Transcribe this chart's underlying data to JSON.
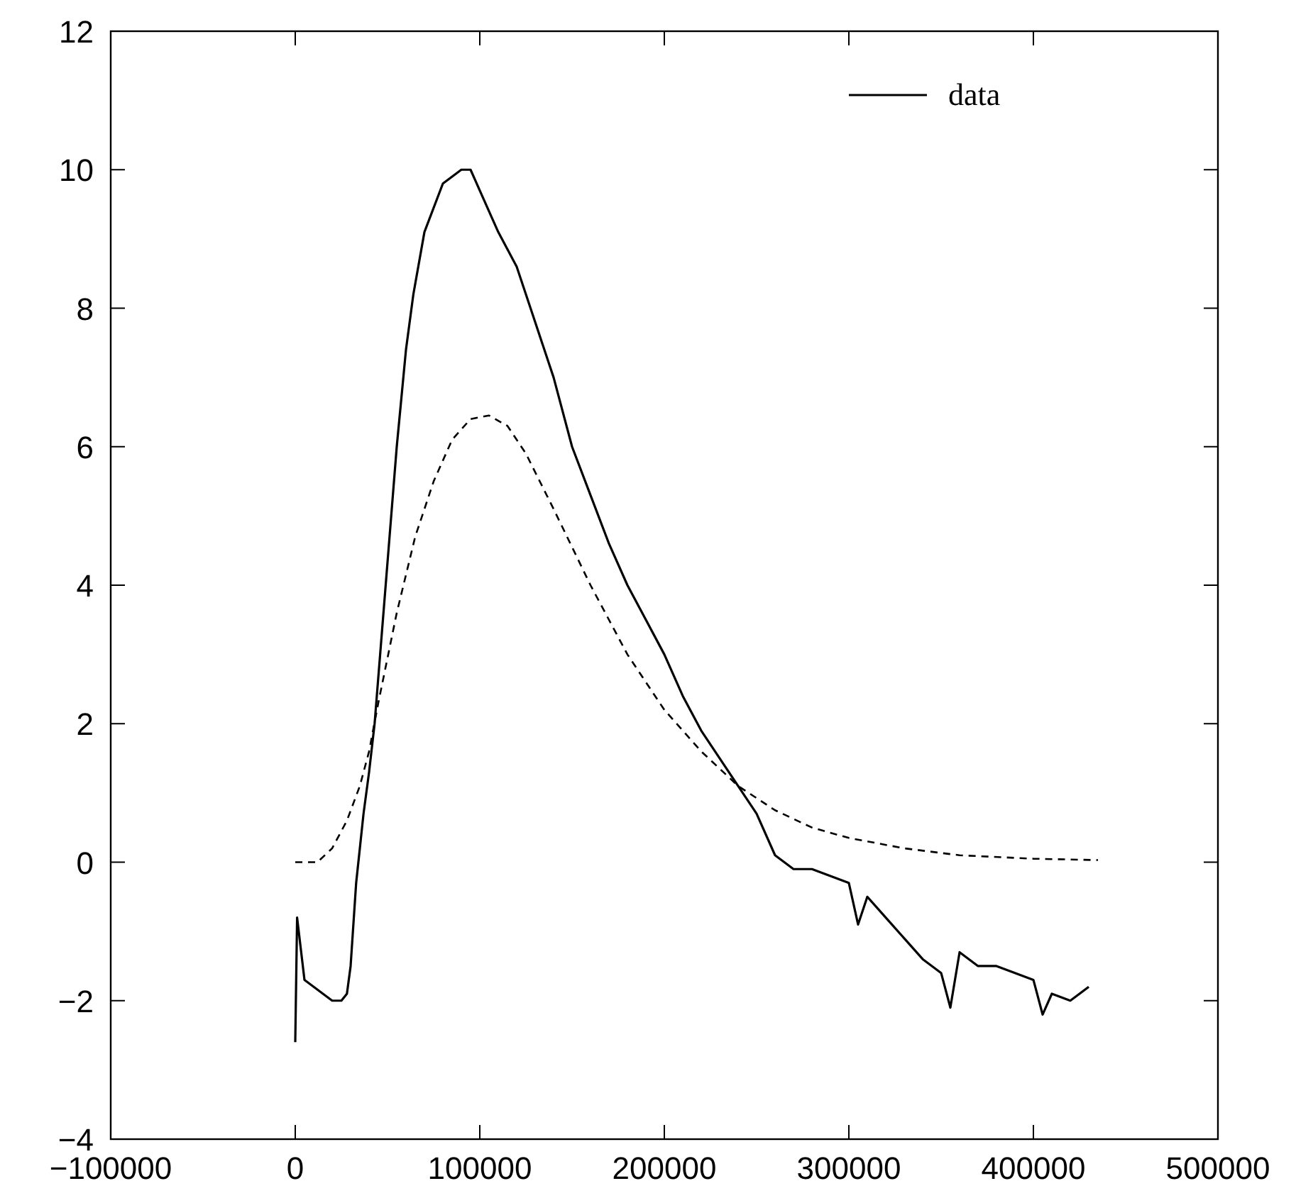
{
  "chart_data": {
    "type": "line",
    "xlim": [
      -100000,
      500000
    ],
    "ylim": [
      -4,
      12
    ],
    "xticks": [
      -100000,
      0,
      100000,
      200000,
      300000,
      400000,
      500000
    ],
    "yticks": [
      -4,
      -2,
      0,
      2,
      4,
      6,
      8,
      10,
      12
    ],
    "grid": false,
    "legend": "top right",
    "series": [
      {
        "name": "data",
        "color": "#000000",
        "line_style": "solid",
        "x": [
          0,
          1000,
          5000,
          10000,
          15000,
          20000,
          25000,
          28000,
          30000,
          33000,
          37000,
          40000,
          43000,
          49000,
          55000,
          60000,
          64000,
          70000,
          80000,
          90000,
          95000,
          100000,
          110000,
          120000,
          130000,
          140000,
          150000,
          160000,
          170000,
          180000,
          190000,
          200000,
          210000,
          220000,
          230000,
          240000,
          250000,
          260000,
          270000,
          280000,
          290000,
          300000,
          305000,
          310000,
          320000,
          330000,
          340000,
          350000,
          355000,
          360000,
          370000,
          380000,
          390000,
          400000,
          405000,
          410000,
          420000,
          430000
        ],
        "values": [
          -2.6,
          -0.8,
          -1.7,
          -1.8,
          -1.9,
          -2.0,
          -2.0,
          -1.9,
          -1.5,
          -0.3,
          0.7,
          1.3,
          2.0,
          4.0,
          6.0,
          7.4,
          8.2,
          9.1,
          9.8,
          10.0,
          10.0,
          9.7,
          9.1,
          8.6,
          7.8,
          7.0,
          6.0,
          5.3,
          4.6,
          4.0,
          3.5,
          3.0,
          2.4,
          1.9,
          1.5,
          1.1,
          0.7,
          0.1,
          -0.1,
          -0.1,
          -0.2,
          -0.3,
          -0.9,
          -0.5,
          -0.8,
          -1.1,
          -1.4,
          -1.6,
          -2.1,
          -1.3,
          -1.5,
          -1.5,
          -1.6,
          -1.7,
          -2.2,
          -1.9,
          -2.0,
          -1.8
        ]
      },
      {
        "color": "#000000",
        "line_style": "dashed",
        "x": [
          0,
          12000,
          20000,
          28000,
          35000,
          40000,
          45000,
          55000,
          65000,
          75000,
          85000,
          95000,
          105000,
          115000,
          125000,
          140000,
          160000,
          180000,
          200000,
          220000,
          240000,
          260000,
          280000,
          300000,
          330000,
          360000,
          400000,
          435000
        ],
        "values": [
          0,
          0,
          0.2,
          0.6,
          1.1,
          1.6,
          2.3,
          3.6,
          4.7,
          5.5,
          6.1,
          6.4,
          6.45,
          6.3,
          5.9,
          5.1,
          4.0,
          3.0,
          2.2,
          1.6,
          1.1,
          0.75,
          0.5,
          0.35,
          0.2,
          0.1,
          0.05,
          0.03
        ]
      }
    ]
  }
}
